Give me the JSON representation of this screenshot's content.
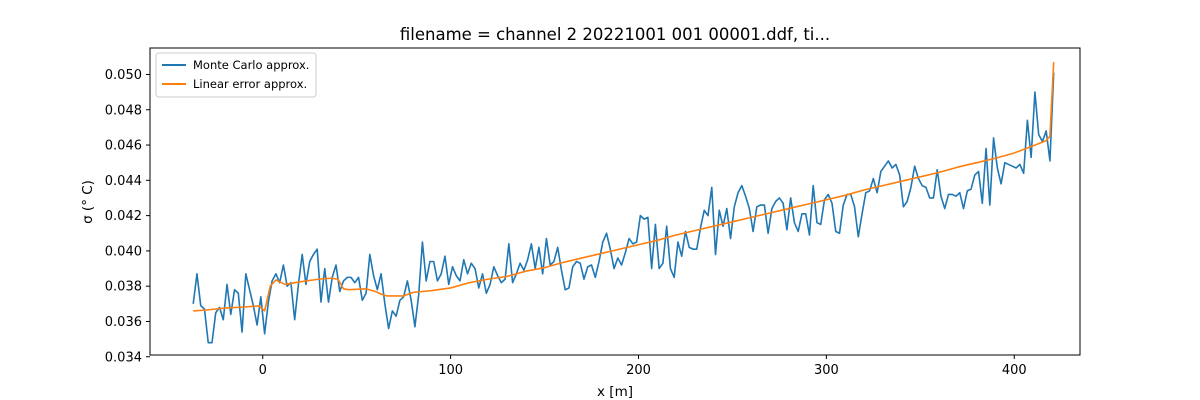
{
  "chart_data": {
    "type": "line",
    "title": "filename = channel 2 20221001 001 00001.ddf, ti...",
    "xlabel": "x [m]",
    "ylabel": "σ (° C)",
    "xlim": [
      -60,
      435
    ],
    "ylim": [
      0.0341,
      0.0515
    ],
    "xticks": [
      0,
      100,
      200,
      300,
      400
    ],
    "xtick_labels": [
      "0",
      "100",
      "200",
      "300",
      "400"
    ],
    "yticks": [
      0.034,
      0.036,
      0.038,
      0.04,
      0.042,
      0.044,
      0.046,
      0.048,
      0.05
    ],
    "ytick_labels": [
      "0.034",
      "0.036",
      "0.038",
      "0.040",
      "0.042",
      "0.044",
      "0.046",
      "0.048",
      "0.050"
    ],
    "grid": false,
    "legend_position": "top-left",
    "series": [
      {
        "name": "Monte Carlo approx.",
        "color": "#1f77b4",
        "points": [
          [
            -37,
            0.037
          ],
          [
            -35,
            0.0387
          ],
          [
            -33,
            0.0369
          ],
          [
            -31,
            0.0367
          ],
          [
            -29,
            0.0348
          ],
          [
            -27,
            0.0348
          ],
          [
            -25,
            0.0365
          ],
          [
            -23,
            0.0368
          ],
          [
            -21,
            0.0361
          ],
          [
            -19,
            0.0381
          ],
          [
            -17,
            0.0364
          ],
          [
            -15,
            0.0378
          ],
          [
            -13,
            0.0376
          ],
          [
            -11,
            0.0354
          ],
          [
            -9,
            0.0387
          ],
          [
            -7,
            0.0378
          ],
          [
            -5,
            0.0369
          ],
          [
            -3,
            0.0358
          ],
          [
            -1,
            0.0374
          ],
          [
            1,
            0.0353
          ],
          [
            3,
            0.0371
          ],
          [
            5,
            0.0383
          ],
          [
            7,
            0.0387
          ],
          [
            9,
            0.0382
          ],
          [
            11,
            0.0392
          ],
          [
            13,
            0.038
          ],
          [
            15,
            0.0382
          ],
          [
            17,
            0.0361
          ],
          [
            19,
            0.0381
          ],
          [
            21,
            0.0398
          ],
          [
            23,
            0.0381
          ],
          [
            25,
            0.0394
          ],
          [
            27,
            0.0398
          ],
          [
            29,
            0.0401
          ],
          [
            31,
            0.0371
          ],
          [
            33,
            0.039
          ],
          [
            35,
            0.0371
          ],
          [
            37,
            0.0385
          ],
          [
            39,
            0.0392
          ],
          [
            41,
            0.0377
          ],
          [
            43,
            0.0383
          ],
          [
            45,
            0.0385
          ],
          [
            47,
            0.0385
          ],
          [
            49,
            0.0382
          ],
          [
            51,
            0.0385
          ],
          [
            53,
            0.0372
          ],
          [
            55,
            0.0376
          ],
          [
            57,
            0.0398
          ],
          [
            59,
            0.0386
          ],
          [
            61,
            0.0378
          ],
          [
            63,
            0.0387
          ],
          [
            65,
            0.037
          ],
          [
            67,
            0.0356
          ],
          [
            69,
            0.0366
          ],
          [
            71,
            0.0363
          ],
          [
            73,
            0.0372
          ],
          [
            75,
            0.0374
          ],
          [
            77,
            0.0383
          ],
          [
            79,
            0.0372
          ],
          [
            81,
            0.0357
          ],
          [
            83,
            0.0375
          ],
          [
            85,
            0.0405
          ],
          [
            87,
            0.0383
          ],
          [
            89,
            0.0394
          ],
          [
            91,
            0.0394
          ],
          [
            93,
            0.0383
          ],
          [
            95,
            0.0387
          ],
          [
            97,
            0.0397
          ],
          [
            99,
            0.0381
          ],
          [
            101,
            0.0391
          ],
          [
            103,
            0.0386
          ],
          [
            105,
            0.0383
          ],
          [
            107,
            0.0395
          ],
          [
            109,
            0.0387
          ],
          [
            111,
            0.0393
          ],
          [
            113,
            0.039
          ],
          [
            115,
            0.0379
          ],
          [
            117,
            0.0387
          ],
          [
            119,
            0.0376
          ],
          [
            121,
            0.0381
          ],
          [
            123,
            0.0391
          ],
          [
            125,
            0.0386
          ],
          [
            127,
            0.0382
          ],
          [
            129,
            0.0384
          ],
          [
            131,
            0.0404
          ],
          [
            133,
            0.0382
          ],
          [
            135,
            0.0387
          ],
          [
            137,
            0.0393
          ],
          [
            139,
            0.0389
          ],
          [
            141,
            0.0395
          ],
          [
            143,
            0.0404
          ],
          [
            145,
            0.039
          ],
          [
            147,
            0.0402
          ],
          [
            149,
            0.0387
          ],
          [
            151,
            0.0407
          ],
          [
            153,
            0.0392
          ],
          [
            155,
            0.0394
          ],
          [
            157,
            0.0402
          ],
          [
            159,
            0.0389
          ],
          [
            161,
            0.0378
          ],
          [
            163,
            0.0379
          ],
          [
            165,
            0.0391
          ],
          [
            167,
            0.0394
          ],
          [
            169,
            0.0393
          ],
          [
            171,
            0.0384
          ],
          [
            173,
            0.0391
          ],
          [
            175,
            0.0392
          ],
          [
            177,
            0.0385
          ],
          [
            179,
            0.0394
          ],
          [
            181,
            0.0405
          ],
          [
            183,
            0.041
          ],
          [
            185,
            0.0401
          ],
          [
            187,
            0.039
          ],
          [
            189,
            0.0396
          ],
          [
            191,
            0.0392
          ],
          [
            193,
            0.0399
          ],
          [
            195,
            0.0407
          ],
          [
            197,
            0.0404
          ],
          [
            199,
            0.0405
          ],
          [
            201,
            0.042
          ],
          [
            203,
            0.0418
          ],
          [
            205,
            0.0419
          ],
          [
            207,
            0.039
          ],
          [
            209,
            0.0415
          ],
          [
            211,
            0.039
          ],
          [
            213,
            0.0393
          ],
          [
            215,
            0.0414
          ],
          [
            217,
            0.039
          ],
          [
            219,
            0.0385
          ],
          [
            221,
            0.0405
          ],
          [
            223,
            0.0397
          ],
          [
            225,
            0.0411
          ],
          [
            227,
            0.0402
          ],
          [
            229,
            0.0401
          ],
          [
            231,
            0.0401
          ],
          [
            233,
            0.0413
          ],
          [
            235,
            0.0423
          ],
          [
            237,
            0.042
          ],
          [
            239,
            0.0436
          ],
          [
            241,
            0.0398
          ],
          [
            243,
            0.0423
          ],
          [
            245,
            0.0414
          ],
          [
            247,
            0.0424
          ],
          [
            249,
            0.0407
          ],
          [
            251,
            0.0425
          ],
          [
            253,
            0.0433
          ],
          [
            255,
            0.0437
          ],
          [
            257,
            0.0431
          ],
          [
            259,
            0.0424
          ],
          [
            261,
            0.0411
          ],
          [
            263,
            0.0425
          ],
          [
            265,
            0.0426
          ],
          [
            267,
            0.0426
          ],
          [
            269,
            0.041
          ],
          [
            271,
            0.0424
          ],
          [
            273,
            0.0428
          ],
          [
            275,
            0.043
          ],
          [
            277,
            0.0427
          ],
          [
            279,
            0.0412
          ],
          [
            281,
            0.043
          ],
          [
            283,
            0.0416
          ],
          [
            285,
            0.0411
          ],
          [
            287,
            0.0421
          ],
          [
            289,
            0.0421
          ],
          [
            291,
            0.0409
          ],
          [
            293,
            0.0437
          ],
          [
            295,
            0.0416
          ],
          [
            297,
            0.0415
          ],
          [
            299,
            0.0429
          ],
          [
            301,
            0.0432
          ],
          [
            303,
            0.0427
          ],
          [
            305,
            0.0411
          ],
          [
            307,
            0.041
          ],
          [
            309,
            0.0426
          ],
          [
            311,
            0.0432
          ],
          [
            313,
            0.0432
          ],
          [
            315,
            0.0425
          ],
          [
            317,
            0.0408
          ],
          [
            319,
            0.0421
          ],
          [
            321,
            0.0433
          ],
          [
            323,
            0.0434
          ],
          [
            325,
            0.0441
          ],
          [
            327,
            0.0433
          ],
          [
            329,
            0.0445
          ],
          [
            331,
            0.0448
          ],
          [
            333,
            0.0451
          ],
          [
            335,
            0.0447
          ],
          [
            337,
            0.0449
          ],
          [
            339,
            0.0443
          ],
          [
            341,
            0.0425
          ],
          [
            343,
            0.0428
          ],
          [
            345,
            0.0436
          ],
          [
            347,
            0.0448
          ],
          [
            349,
            0.0441
          ],
          [
            351,
            0.0437
          ],
          [
            353,
            0.0436
          ],
          [
            355,
            0.043
          ],
          [
            357,
            0.043
          ],
          [
            359,
            0.0446
          ],
          [
            361,
            0.0431
          ],
          [
            363,
            0.0424
          ],
          [
            365,
            0.0432
          ],
          [
            367,
            0.0432
          ],
          [
            369,
            0.0431
          ],
          [
            371,
            0.0433
          ],
          [
            373,
            0.0424
          ],
          [
            375,
            0.0434
          ],
          [
            377,
            0.0435
          ],
          [
            379,
            0.0443
          ],
          [
            381,
            0.0445
          ],
          [
            383,
            0.0427
          ],
          [
            385,
            0.0458
          ],
          [
            387,
            0.0426
          ],
          [
            389,
            0.0464
          ],
          [
            391,
            0.0447
          ],
          [
            393,
            0.0438
          ],
          [
            395,
            0.045
          ],
          [
            397,
            0.0449
          ],
          [
            399,
            0.0448
          ],
          [
            401,
            0.0447
          ],
          [
            403,
            0.0449
          ],
          [
            405,
            0.0444
          ],
          [
            407,
            0.0474
          ],
          [
            409,
            0.0453
          ],
          [
            411,
            0.049
          ],
          [
            413,
            0.0466
          ],
          [
            415,
            0.0462
          ],
          [
            417,
            0.0468
          ],
          [
            419,
            0.0451
          ],
          [
            421,
            0.0501
          ]
        ]
      },
      {
        "name": "Linear error approx.",
        "color": "#ff7f0e",
        "points": [
          [
            -37,
            0.0366
          ],
          [
            -30,
            0.03665
          ],
          [
            -20,
            0.03676
          ],
          [
            -10,
            0.03682
          ],
          [
            -2,
            0.03688
          ],
          [
            1,
            0.0366
          ],
          [
            4,
            0.038
          ],
          [
            7,
            0.03835
          ],
          [
            12,
            0.0381
          ],
          [
            20,
            0.03825
          ],
          [
            30,
            0.0384
          ],
          [
            36,
            0.03845
          ],
          [
            40,
            0.0384
          ],
          [
            43,
            0.03785
          ],
          [
            46,
            0.0378
          ],
          [
            55,
            0.03785
          ],
          [
            60,
            0.0377
          ],
          [
            63,
            0.03755
          ],
          [
            66,
            0.03745
          ],
          [
            75,
            0.03745
          ],
          [
            80,
            0.03765
          ],
          [
            90,
            0.03775
          ],
          [
            100,
            0.0379
          ],
          [
            110,
            0.0382
          ],
          [
            120,
            0.0384
          ],
          [
            130,
            0.03855
          ],
          [
            140,
            0.03885
          ],
          [
            150,
            0.03905
          ],
          [
            160,
            0.03935
          ],
          [
            170,
            0.0396
          ],
          [
            180,
            0.03985
          ],
          [
            190,
            0.0401
          ],
          [
            200,
            0.04035
          ],
          [
            210,
            0.0406
          ],
          [
            220,
            0.0409
          ],
          [
            230,
            0.04115
          ],
          [
            240,
            0.0414
          ],
          [
            250,
            0.04165
          ],
          [
            260,
            0.0419
          ],
          [
            270,
            0.04215
          ],
          [
            280,
            0.0424
          ],
          [
            290,
            0.04265
          ],
          [
            300,
            0.0429
          ],
          [
            310,
            0.04315
          ],
          [
            320,
            0.04345
          ],
          [
            330,
            0.0437
          ],
          [
            340,
            0.04395
          ],
          [
            350,
            0.0442
          ],
          [
            360,
            0.04445
          ],
          [
            370,
            0.04475
          ],
          [
            380,
            0.045
          ],
          [
            390,
            0.04525
          ],
          [
            400,
            0.04555
          ],
          [
            410,
            0.04595
          ],
          [
            417,
            0.04625
          ],
          [
            419,
            0.0465
          ],
          [
            421,
            0.0507
          ]
        ]
      }
    ]
  }
}
